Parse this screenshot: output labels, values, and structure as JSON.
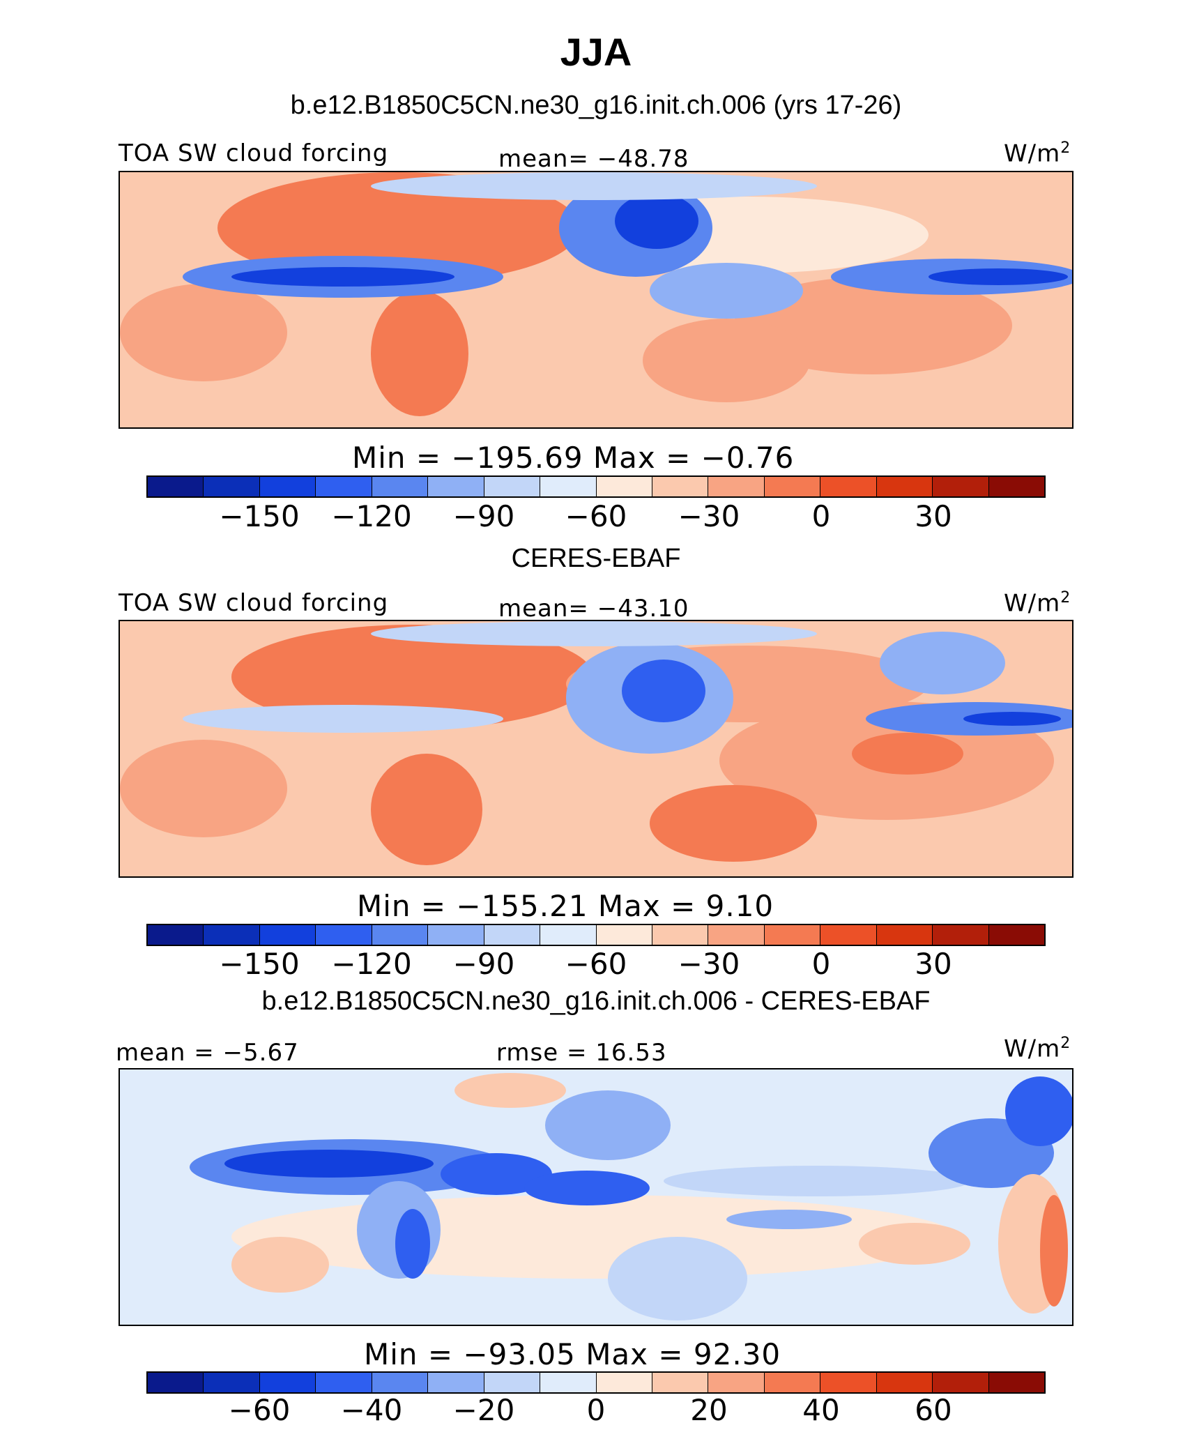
{
  "title": "JJA",
  "panels": [
    {
      "heading": "b.e12.B1850C5CN.ne30_g16.init.ch.006 (yrs 17-26)",
      "left_label": "TOA SW cloud forcing",
      "center_label": "mean= −48.78",
      "units": "W/m",
      "units_sup": "2",
      "stats": "Min = −195.69 Max = −0.76",
      "ticks": [
        "−150",
        "−120",
        "−90",
        "−60",
        "−30",
        "0",
        "30"
      ]
    },
    {
      "heading": "CERES-EBAF",
      "left_label": "TOA SW cloud forcing",
      "center_label": "mean= −43.10",
      "units": "W/m",
      "units_sup": "2",
      "stats": "Min = −155.21 Max = 9.10",
      "ticks": [
        "−150",
        "−120",
        "−90",
        "−60",
        "−30",
        "0",
        "30"
      ]
    },
    {
      "heading": "b.e12.B1850C5CN.ne30_g16.init.ch.006 - CERES-EBAF",
      "left_label": "mean = −5.67",
      "center_label": "rmse = 16.53",
      "units": "W/m",
      "units_sup": "2",
      "stats": "Min = −93.05 Max = 92.30",
      "ticks": [
        "−60",
        "−40",
        "−20",
        "0",
        "20",
        "40",
        "60"
      ]
    }
  ],
  "colorbar_colors": [
    "#0a1a8c",
    "#0b2fb8",
    "#1240dd",
    "#2f5ff0",
    "#5a86f0",
    "#8fb0f5",
    "#c2d6f8",
    "#e0ecfb",
    "#fde9da",
    "#fbc9ae",
    "#f8a483",
    "#f47a52",
    "#ec5128",
    "#d8360f",
    "#b21f0a",
    "#8a0c05"
  ]
}
